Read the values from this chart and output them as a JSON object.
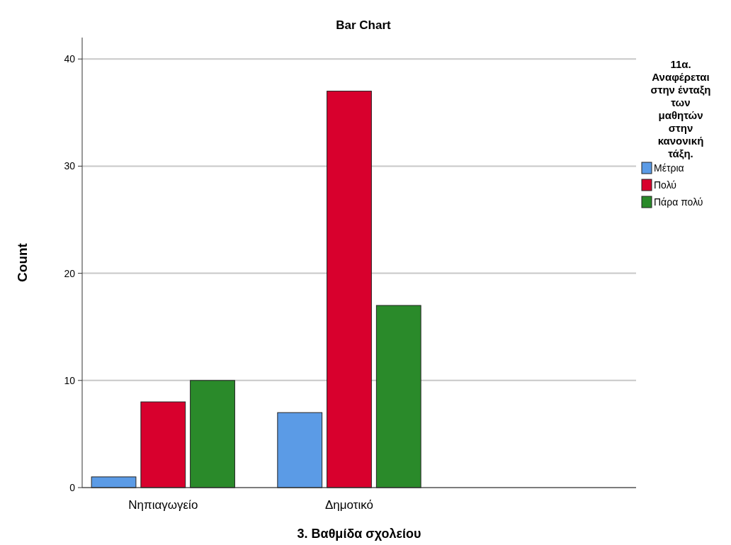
{
  "chart_data": {
    "type": "bar",
    "title": "Bar Chart",
    "xlabel": "3. Βαθμίδα σχολείου",
    "ylabel": "Count",
    "legend_title": "11α. Αναφέρεται στην ένταξη των μαθητών στην κανονική τάξη.",
    "categories": [
      "Νηπιαγωγείο",
      "Δημοτικό",
      null
    ],
    "series": [
      {
        "name": "Μέτρια",
        "color": "#5b9be6",
        "values": [
          1,
          7,
          0
        ]
      },
      {
        "name": "Πολύ",
        "color": "#d8002d",
        "values": [
          8,
          37,
          0
        ]
      },
      {
        "name": "Πάρα πολύ",
        "color": "#2a8a2a",
        "values": [
          10,
          17,
          0
        ]
      }
    ],
    "ylim": [
      0,
      42
    ],
    "yticks": [
      0,
      10,
      20,
      30,
      40
    ],
    "grid": "y",
    "legend": "right"
  }
}
